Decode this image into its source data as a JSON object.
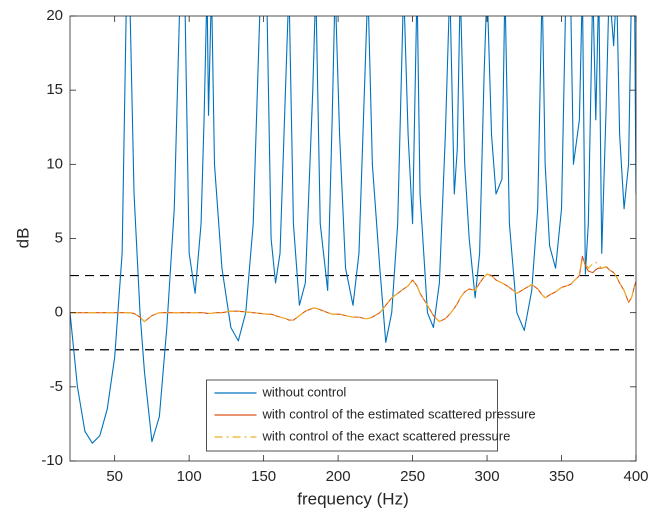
{
  "chart_data": {
    "type": "line",
    "xlabel": "frequency (Hz)",
    "ylabel": "dB",
    "xlim": [
      20,
      400
    ],
    "ylim": [
      -10,
      20
    ],
    "xticks": [
      50,
      100,
      150,
      200,
      250,
      300,
      350,
      400
    ],
    "yticks": [
      -10,
      -5,
      0,
      5,
      10,
      15,
      20
    ],
    "grid": false,
    "legend": "south",
    "hlines": [
      2.5,
      -2.5
    ],
    "hline_color": "#000000",
    "x": [
      20,
      25,
      30,
      35,
      40,
      45,
      50,
      55,
      58,
      60,
      63,
      67,
      70,
      75,
      80,
      85,
      90,
      94,
      97,
      100,
      104,
      108,
      110,
      112,
      113,
      115,
      117,
      122,
      128,
      133,
      138,
      143,
      148,
      152,
      155,
      158,
      161,
      165,
      167,
      170,
      174,
      178,
      183,
      185,
      188,
      193,
      196,
      198,
      201,
      205,
      210,
      214,
      218,
      220,
      223,
      228,
      232,
      236,
      240,
      244,
      247,
      250,
      253,
      255,
      260,
      264,
      268,
      272,
      275,
      278,
      280,
      282,
      285,
      288,
      292,
      295,
      298,
      300,
      303,
      306,
      310,
      312,
      315,
      320,
      325,
      330,
      334,
      337,
      339,
      342,
      346,
      350,
      353,
      356,
      358,
      362,
      364,
      366,
      368,
      371,
      373,
      375,
      377,
      380,
      382,
      385,
      387,
      389,
      392,
      395,
      397,
      399,
      400
    ],
    "series": [
      {
        "name": "without control",
        "color": "#0072BD",
        "style": "solid",
        "values": [
          0,
          -5,
          -8,
          -8.8,
          -8.3,
          -6.5,
          -3,
          4,
          22,
          22,
          8,
          0,
          -4,
          -8.7,
          -7,
          -1,
          7,
          22,
          22,
          4,
          1.3,
          6,
          13,
          22,
          13.3,
          22,
          10,
          3,
          -1,
          -1.9,
          0,
          6,
          22,
          22,
          5,
          2,
          4,
          16,
          22,
          6,
          0.5,
          2,
          15,
          22,
          6,
          1.5,
          13,
          22,
          12,
          3,
          0.5,
          4,
          16,
          22,
          10,
          3,
          -2,
          0,
          6,
          22,
          12,
          6,
          22,
          8,
          0,
          -1,
          2,
          12,
          22,
          8,
          11,
          22,
          10,
          5,
          1,
          4,
          16,
          22,
          12,
          8,
          9,
          22,
          6,
          0,
          -1.2,
          1.5,
          7,
          22,
          10,
          4.5,
          3,
          7,
          22,
          22,
          10,
          13,
          22,
          2.6,
          6,
          22,
          13,
          22,
          4,
          14,
          22,
          18,
          22,
          12,
          7,
          10,
          22,
          22,
          8
        ]
      },
      {
        "name": "with control of the estimated scattered pressure",
        "color": "#D95319",
        "style": "solid",
        "values": [
          0,
          0,
          0,
          0,
          0,
          0,
          0,
          0,
          0,
          0,
          -0.05,
          -0.3,
          -0.6,
          -0.2,
          0,
          0,
          0,
          0,
          0,
          0,
          0,
          0,
          0,
          -0.05,
          -0.05,
          -0.05,
          0,
          0,
          0.1,
          0.1,
          0.05,
          0,
          -0.05,
          -0.1,
          -0.1,
          -0.2,
          -0.3,
          -0.4,
          -0.5,
          -0.5,
          -0.2,
          0.1,
          0.3,
          0.3,
          0.2,
          0,
          -0.1,
          -0.1,
          -0.1,
          -0.2,
          -0.3,
          -0.3,
          -0.4,
          -0.4,
          -0.3,
          0,
          0.5,
          1,
          1.3,
          1.6,
          1.8,
          2.2,
          1.8,
          1.3,
          0.5,
          -0.2,
          -0.6,
          -0.4,
          -0.1,
          0.3,
          0.6,
          1,
          1.4,
          1.6,
          1.5,
          2,
          2.4,
          2.6,
          2.5,
          2.2,
          2,
          1.9,
          1.7,
          1.3,
          1.6,
          1.9,
          1.6,
          1.2,
          1,
          1.2,
          1.4,
          1.7,
          1.8,
          1.9,
          2.1,
          2.5,
          3.8,
          3.2,
          2.8,
          2.7,
          2.9,
          3,
          3,
          3.1,
          2.9,
          2.7,
          2.4,
          2,
          1.5,
          0.7,
          1,
          1.8,
          2.1
        ]
      },
      {
        "name": "with control of the exact scattered pressure",
        "color": "#EDB120",
        "style": "dashdot",
        "values": [
          0,
          0,
          0,
          0,
          0,
          0,
          0,
          0,
          0,
          0,
          -0.05,
          -0.3,
          -0.6,
          -0.2,
          0,
          0,
          0,
          0,
          0,
          0,
          0,
          0,
          0,
          -0.05,
          -0.05,
          -0.05,
          0,
          0,
          0.1,
          0.1,
          0.05,
          0,
          -0.05,
          -0.1,
          -0.1,
          -0.2,
          -0.3,
          -0.4,
          -0.5,
          -0.5,
          -0.2,
          0.1,
          0.3,
          0.3,
          0.2,
          0,
          -0.1,
          -0.1,
          -0.1,
          -0.2,
          -0.3,
          -0.3,
          -0.4,
          -0.4,
          -0.3,
          0,
          0.5,
          1,
          1.3,
          1.6,
          1.8,
          2.2,
          1.8,
          1.3,
          0.5,
          -0.2,
          -0.6,
          -0.4,
          -0.1,
          0.3,
          0.6,
          1,
          1.4,
          1.6,
          1.5,
          2,
          2.4,
          2.6,
          2.5,
          2.2,
          2,
          1.9,
          1.7,
          1.3,
          1.6,
          1.9,
          1.6,
          1.2,
          1,
          1.2,
          1.4,
          1.7,
          1.8,
          1.9,
          2.1,
          2.5,
          3.6,
          3.4,
          3,
          3.3,
          3.4,
          3.2,
          3,
          3.1,
          2.9,
          2.7,
          2.4,
          2,
          1.5,
          0.7,
          1,
          1.8,
          2.1
        ]
      }
    ]
  }
}
